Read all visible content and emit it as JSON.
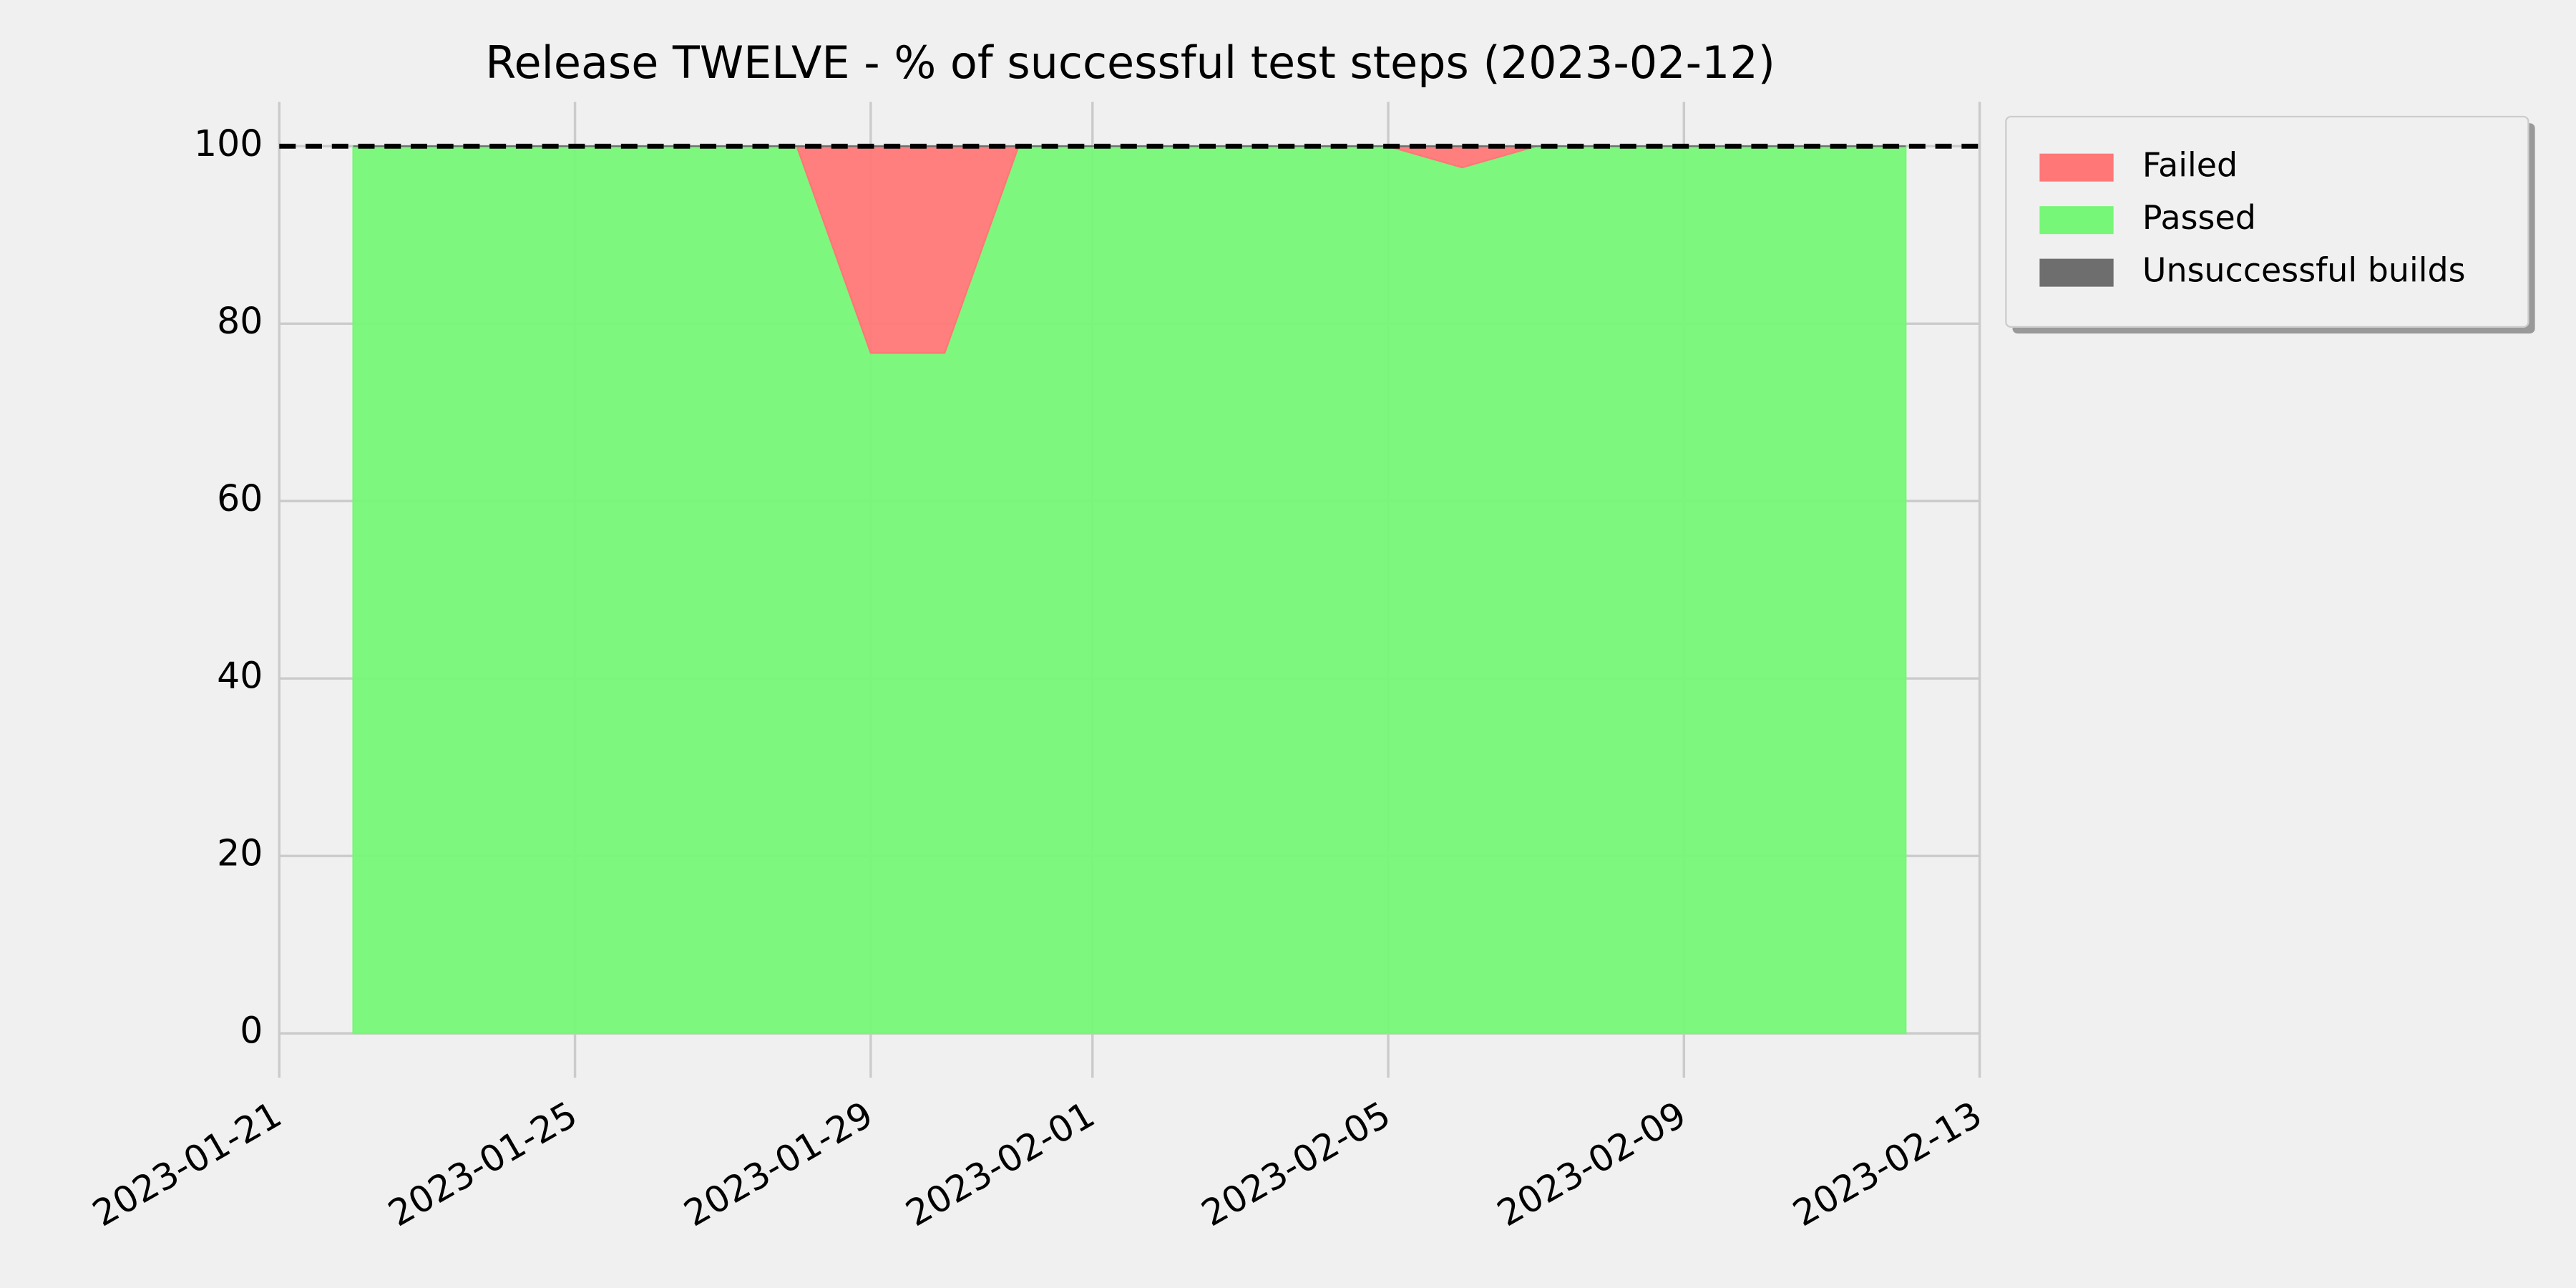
{
  "chart_data": {
    "type": "stacked-area",
    "title": "Release TWELVE - % of successful test steps (2023-02-12)",
    "x": [
      "2023-01-22",
      "2023-01-23",
      "2023-01-24",
      "2023-01-25",
      "2023-01-26",
      "2023-01-27",
      "2023-01-28",
      "2023-01-29",
      "2023-01-30",
      "2023-01-31",
      "2023-02-01",
      "2023-02-02",
      "2023-02-03",
      "2023-02-04",
      "2023-02-05",
      "2023-02-06",
      "2023-02-07",
      "2023-02-08",
      "2023-02-09",
      "2023-02-10",
      "2023-02-11",
      "2023-02-12"
    ],
    "series": [
      {
        "name": "Passed",
        "color": "#77f777",
        "values": [
          100,
          100,
          100,
          100,
          100,
          100,
          100,
          76.7,
          76.7,
          100,
          100,
          100,
          100,
          100,
          100,
          97.6,
          100,
          100,
          100,
          100,
          100,
          100
        ]
      },
      {
        "name": "Failed",
        "color": "#ff7777",
        "values": [
          0,
          0,
          0,
          0,
          0,
          0,
          0,
          23.3,
          23.3,
          0,
          0,
          0,
          0,
          0,
          0,
          2.4,
          0,
          0,
          0,
          0,
          0,
          0
        ]
      },
      {
        "name": "Unsuccessful builds",
        "color": "#6e6e6e",
        "values": [
          0,
          0,
          0,
          0,
          0,
          0,
          0,
          0,
          0,
          0,
          0,
          0,
          0,
          0,
          0,
          0,
          0,
          0,
          0,
          0,
          0,
          0
        ]
      }
    ],
    "legend_order": [
      "Failed",
      "Passed",
      "Unsuccessful builds"
    ],
    "target_line": 100,
    "xlim": [
      "2023-01-21",
      "2023-02-13"
    ],
    "xticks": [
      "2023-01-21",
      "2023-01-25",
      "2023-01-29",
      "2023-02-01",
      "2023-02-05",
      "2023-02-09",
      "2023-02-13"
    ],
    "ylim": [
      -5,
      105
    ],
    "yticks": [
      0,
      20,
      40,
      60,
      80,
      100
    ],
    "grid": true,
    "legend": "outside upper right"
  }
}
